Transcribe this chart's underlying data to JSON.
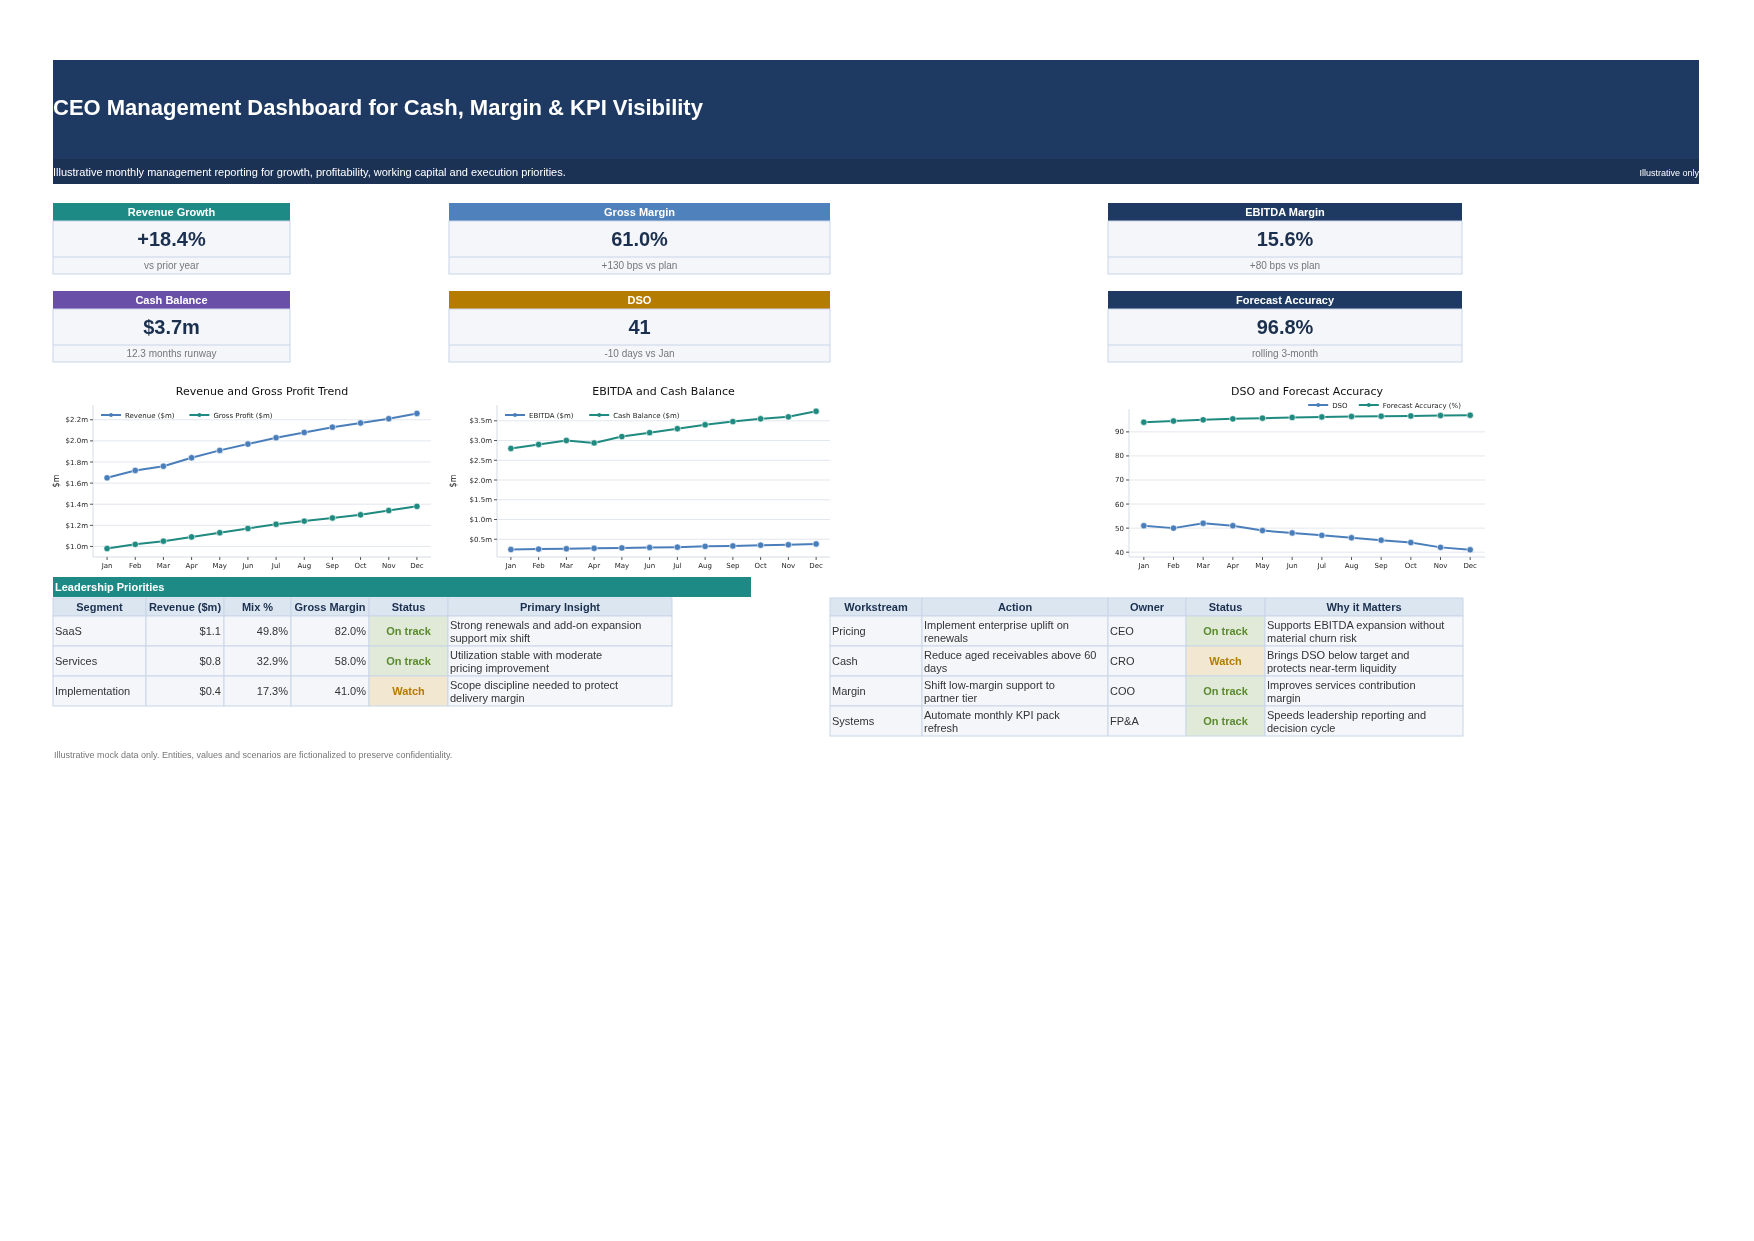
{
  "chart_data": [
    {
      "type": "other",
      "title": "CEO Management Dashboard for Cash, Margin & KPI Visibility",
      "subtitle": "Illustrative monthly management reporting for growth, profitability, working capital and execution priorities.",
      "annotations": [
        "Illustrative only"
      ],
      "color": "#1f3a62"
    },
    {
      "type": "other",
      "title": "Revenue Growth",
      "annotations": [
        "+18.4%",
        "vs prior year"
      ],
      "color": "#1e8a86"
    },
    {
      "type": "other",
      "title": "Gross Margin",
      "annotations": [
        "61.0%",
        "+130 bps vs plan"
      ],
      "color": "#4f81bd"
    },
    {
      "type": "other",
      "title": "EBITDA Margin",
      "annotations": [
        "15.6%",
        "+80 bps vs plan"
      ],
      "color": "#1f3a62"
    },
    {
      "type": "other",
      "title": "Cash Balance",
      "annotations": [
        "$3.7m",
        "12.3 months runway"
      ],
      "color": "#6a4fa8"
    },
    {
      "type": "other",
      "title": "DSO",
      "annotations": [
        "41",
        "-10 days vs Jan"
      ],
      "color": "#b47c00"
    },
    {
      "type": "other",
      "title": "Forecast Accuracy",
      "annotations": [
        "96.8%",
        "rolling 3-month"
      ],
      "color": "#1f3a62"
    },
    {
      "type": "line",
      "title": "Revenue and Gross Profit Trend",
      "ylabel": "$m",
      "categories": [
        "Jan",
        "Feb",
        "Mar",
        "Apr",
        "May",
        "Jun",
        "Jul",
        "Aug",
        "Sep",
        "Oct",
        "Nov",
        "Dec"
      ],
      "series": [
        {
          "name": "Revenue ($m)",
          "color": "#4a7ebb",
          "values": [
            1.65,
            1.72,
            1.76,
            1.84,
            1.91,
            1.97,
            2.03,
            2.08,
            2.13,
            2.17,
            2.21,
            2.26
          ]
        },
        {
          "name": "Gross Profit ($m)",
          "color": "#1f8a80",
          "values": [
            0.98,
            1.02,
            1.05,
            1.09,
            1.13,
            1.17,
            1.21,
            1.24,
            1.27,
            1.3,
            1.34,
            1.38
          ]
        }
      ],
      "ylim": [
        0.9,
        2.34
      ],
      "yticks": [
        {
          "value": 1.0,
          "label": "$1.0m"
        },
        {
          "value": 1.2,
          "label": "$1.2m"
        },
        {
          "value": 1.4,
          "label": "$1.4m"
        },
        {
          "value": 1.6,
          "label": "$1.6m"
        },
        {
          "value": 1.8,
          "label": "$1.8m"
        },
        {
          "value": 2.0,
          "label": "$2.0m"
        },
        {
          "value": 2.2,
          "label": "$2.2m"
        }
      ],
      "grid": "y",
      "legend": "top left",
      "marker": "circle"
    },
    {
      "type": "line",
      "title": "EBITDA and Cash Balance",
      "ylabel": "$m",
      "categories": [
        "Jan",
        "Feb",
        "Mar",
        "Apr",
        "May",
        "Jun",
        "Jul",
        "Aug",
        "Sep",
        "Oct",
        "Nov",
        "Dec"
      ],
      "series": [
        {
          "name": "EBITDA ($m)",
          "color": "#4a7ebb",
          "values": [
            0.24,
            0.25,
            0.26,
            0.27,
            0.28,
            0.29,
            0.3,
            0.32,
            0.33,
            0.35,
            0.36,
            0.38
          ]
        },
        {
          "name": "Cash Balance ($m)",
          "color": "#1f8a80",
          "values": [
            2.8,
            2.9,
            3.0,
            2.94,
            3.1,
            3.2,
            3.3,
            3.4,
            3.48,
            3.55,
            3.6,
            3.74
          ]
        }
      ],
      "ylim": [
        0.05,
        3.9
      ],
      "yticks": [
        {
          "value": 0.5,
          "label": "$0.5m"
        },
        {
          "value": 1.0,
          "label": "$1.0m"
        },
        {
          "value": 1.5,
          "label": "$1.5m"
        },
        {
          "value": 2.0,
          "label": "$2.0m"
        },
        {
          "value": 2.5,
          "label": "$2.5m"
        },
        {
          "value": 3.0,
          "label": "$3.0m"
        },
        {
          "value": 3.5,
          "label": "$3.5m"
        }
      ],
      "grid": "y",
      "legend": "top left",
      "marker": "circle"
    },
    {
      "type": "line",
      "title": "DSO and Forecast Accuracy",
      "categories": [
        "Jan",
        "Feb",
        "Mar",
        "Apr",
        "May",
        "Jun",
        "Jul",
        "Aug",
        "Sep",
        "Oct",
        "Nov",
        "Dec"
      ],
      "series": [
        {
          "name": "DSO",
          "color": "#4a7ebb",
          "values": [
            51,
            50,
            52,
            51,
            49,
            48,
            47,
            46,
            45,
            44,
            42,
            41
          ]
        },
        {
          "name": "Forecast Accuracy (%)",
          "color": "#1f8a80",
          "values": [
            94,
            94.5,
            95,
            95.4,
            95.7,
            96,
            96.2,
            96.4,
            96.5,
            96.6,
            96.8,
            96.9
          ]
        }
      ],
      "ylim": [
        38,
        99.5
      ],
      "yticks": [
        40,
        50,
        60,
        70,
        80,
        90
      ],
      "grid": "y",
      "legend": "top right",
      "marker": "circle"
    },
    {
      "type": "other",
      "title": "Leadership Priorities",
      "color": "#1e8a86",
      "categories": [
        "Segment",
        "Revenue ($m)",
        "Mix %",
        "Gross Margin",
        "Status",
        "Primary Insight"
      ],
      "cell_labels": [
        [
          "SaaS",
          "$1.1",
          "49.8%",
          "82.0%",
          "On track",
          "Strong renewals and add-on expansion support mix shift"
        ],
        [
          "Services",
          "$0.8",
          "32.9%",
          "58.0%",
          "On track",
          "Utilization stable with moderate pricing improvement"
        ],
        [
          "Implementation",
          "$0.4",
          "17.3%",
          "41.0%",
          "Watch",
          "Scope discipline needed to protect delivery margin"
        ]
      ],
      "colors": [
        [
          null,
          null,
          null,
          null,
          "#5a8a2e",
          null
        ],
        [
          null,
          null,
          null,
          null,
          "#5a8a2e",
          null
        ],
        [
          null,
          null,
          null,
          null,
          "#b47c00",
          null
        ]
      ]
    },
    {
      "type": "other",
      "categories": [
        "Workstream",
        "Action",
        "Owner",
        "Status",
        "Why it Matters"
      ],
      "cell_labels": [
        [
          "Pricing",
          "Implement enterprise uplift on renewals",
          "CEO",
          "On track",
          "Supports EBITDA expansion without material churn risk"
        ],
        [
          "Cash",
          "Reduce aged receivables above 60 days",
          "CRO",
          "Watch",
          "Brings DSO below target and protects near-term liquidity"
        ],
        [
          "Margin",
          "Shift low-margin support to partner tier",
          "COO",
          "On track",
          "Improves services contribution margin"
        ],
        [
          "Systems",
          "Automate monthly KPI pack refresh",
          "FP&A",
          "On track",
          "Speeds leadership reporting and decision cycle"
        ]
      ],
      "colors": [
        [
          null,
          null,
          null,
          "#5a8a2e",
          null
        ],
        [
          null,
          null,
          null,
          "#b47c00",
          null
        ],
        [
          null,
          null,
          null,
          "#5a8a2e",
          null
        ],
        [
          null,
          null,
          null,
          "#5a8a2e",
          null
        ]
      ]
    },
    {
      "type": "other",
      "annotations": [
        "Illustrative mock data only. Entities, values and scenarios are fictionalized to preserve confidentiality."
      ]
    }
  ]
}
